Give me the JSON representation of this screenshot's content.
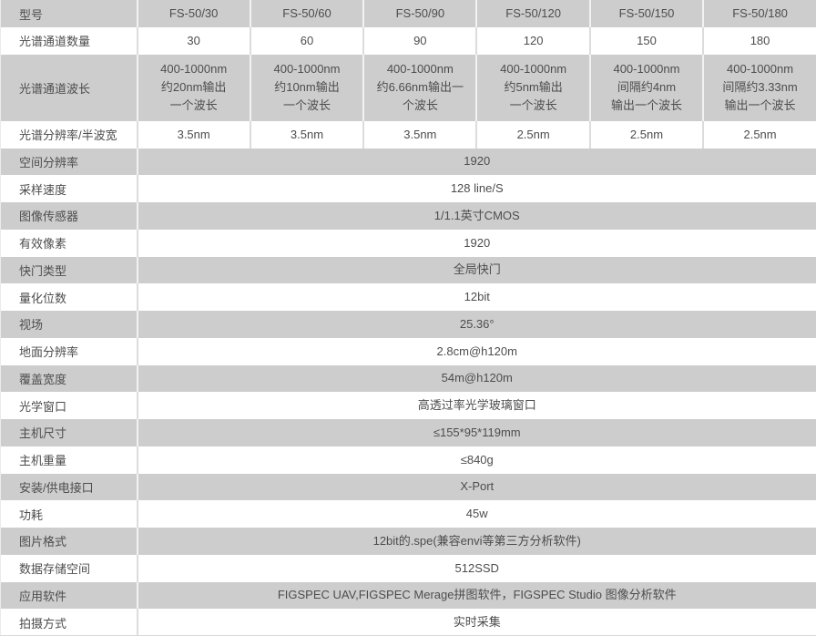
{
  "colors": {
    "stripe_gray": "#cdcdcd",
    "row_white": "#ffffff",
    "text": "#4d4d4d",
    "divider_on_gray": "#f2f2f2",
    "divider_on_white": "#dcdcdc"
  },
  "table": {
    "header": {
      "label": "型号",
      "models": [
        "FS-50/30",
        "FS-50/60",
        "FS-50/90",
        "FS-50/120",
        "FS-50/150",
        "FS-50/180"
      ]
    },
    "matrix_rows": [
      {
        "label": "光谱通道数量",
        "values": [
          "30",
          "60",
          "90",
          "120",
          "150",
          "180"
        ]
      },
      {
        "label": "光谱通道波长",
        "values": [
          "400-1000nm\n约20nm输出\n一个波长",
          "400-1000nm\n约10nm输出\n一个波长",
          "400-1000nm\n约6.66nm输出一\n个波长",
          "400-1000nm\n约5nm输出\n一个波长",
          "400-1000nm\n间隔约4nm\n输出一个波长",
          "400-1000nm\n间隔约3.33nm\n输出一个波长"
        ]
      },
      {
        "label": "光谱分辨率/半波宽",
        "values": [
          "3.5nm",
          "3.5nm",
          "3.5nm",
          "2.5nm",
          "2.5nm",
          "2.5nm"
        ]
      }
    ],
    "span_rows": [
      {
        "label": "空间分辨率",
        "value": "1920"
      },
      {
        "label": "采样速度",
        "value": "128 line/S"
      },
      {
        "label": "图像传感器",
        "value": "1/1.1英寸CMOS"
      },
      {
        "label": "有效像素",
        "value": "1920"
      },
      {
        "label": "快门类型",
        "value": "全局快门"
      },
      {
        "label": "量化位数",
        "value": "12bit"
      },
      {
        "label": "视场",
        "value": "25.36°"
      },
      {
        "label": "地面分辨率",
        "value": "2.8cm@h120m"
      },
      {
        "label": "覆盖宽度",
        "value": "54m@h120m"
      },
      {
        "label": "光学窗口",
        "value": "高透过率光学玻璃窗口"
      },
      {
        "label": "主机尺寸",
        "value": "≤155*95*119mm"
      },
      {
        "label": "主机重量",
        "value": "≤840g"
      },
      {
        "label": "安装/供电接口",
        "value": "X-Port"
      },
      {
        "label": "功耗",
        "value": "45w"
      },
      {
        "label": "图片格式",
        "value": "12bit的.spe(兼容envi等第三方分析软件)"
      },
      {
        "label": "数据存储空间",
        "value": "512SSD"
      },
      {
        "label": "应用软件",
        "value": "FIGSPEC UAV,FIGSPEC Merage拼图软件，FIGSPEC Studio 图像分析软件"
      },
      {
        "label": "拍摄方式",
        "value": "实时采集"
      }
    ]
  }
}
